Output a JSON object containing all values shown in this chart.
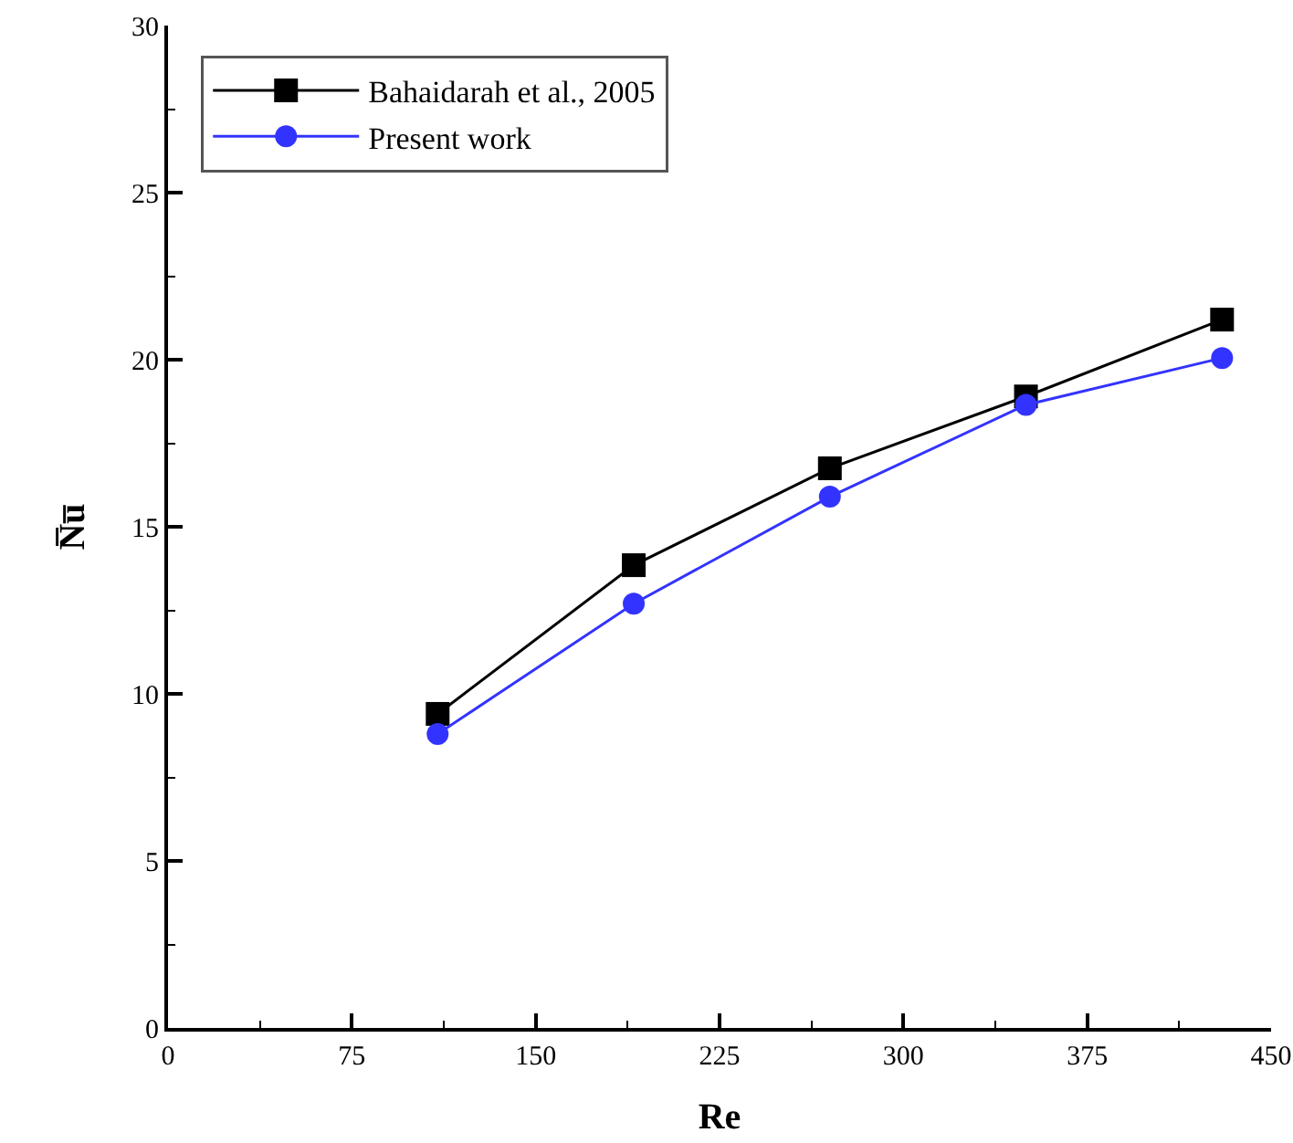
{
  "chart_data": {
    "type": "line",
    "xlabel": "Re",
    "ylabel": "N̅u̅",
    "x": [
      110,
      190,
      270,
      350,
      430
    ],
    "series": [
      {
        "name": "Bahaidarah et al., 2005",
        "color": "#000000",
        "marker": "square",
        "values": [
          9.4,
          13.85,
          16.75,
          18.9,
          21.2
        ]
      },
      {
        "name": "Present work",
        "color": "#3333ff",
        "marker": "circle",
        "values": [
          8.8,
          12.7,
          15.9,
          18.65,
          20.05
        ]
      }
    ],
    "xlim": [
      0,
      450
    ],
    "xticks": [
      0,
      75,
      150,
      225,
      300,
      375,
      450
    ],
    "ylim": [
      0,
      30
    ],
    "yticks": [
      0,
      5,
      10,
      15,
      20,
      25,
      30
    ],
    "grid": false,
    "legend": "top left",
    "line_style": "solid"
  }
}
